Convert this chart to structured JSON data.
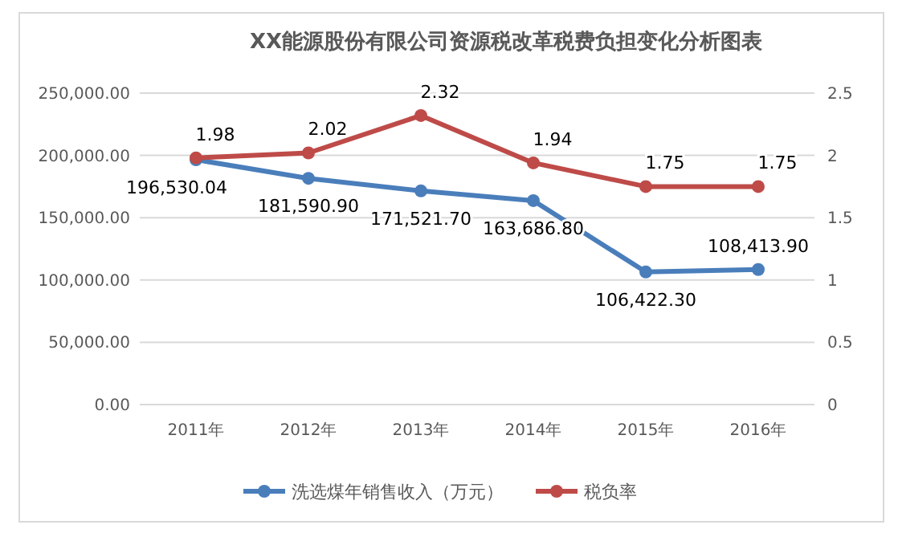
{
  "chart_data": {
    "type": "line",
    "title": "XX能源股份有限公司资源税改革税费负担变化分析图表",
    "categories": [
      "2011年",
      "2012年",
      "2013年",
      "2014年",
      "2015年",
      "2016年"
    ],
    "series": [
      {
        "name": "洗选煤年销售收入（万元）",
        "color": "#4a7ebb",
        "values": [
          196530.04,
          181590.9,
          171521.7,
          163686.8,
          106422.3,
          108413.9
        ],
        "value_labels": [
          "196,530.04",
          "181,590.90",
          "171,521.70",
          "163,686.80",
          "106,422.30",
          "108,413.90"
        ]
      },
      {
        "name": "税负率",
        "color": "#be4b48",
        "axis": "y2",
        "values": [
          1.98,
          2.02,
          2.32,
          1.94,
          1.75,
          1.75
        ],
        "value_labels": [
          "1.98",
          "2.02",
          "2.32",
          "1.94",
          "1.75",
          "1.75"
        ]
      }
    ],
    "ylim": [
      0,
      250000
    ],
    "yticks": [
      {
        "value": 0,
        "label": "0.00"
      },
      {
        "value": 50000,
        "label": "50,000.00"
      },
      {
        "value": 100000,
        "label": "100,000.00"
      },
      {
        "value": 150000,
        "label": "150,000.00"
      },
      {
        "value": 200000,
        "label": "200,000.00"
      },
      {
        "value": 250000,
        "label": "250,000.00"
      }
    ],
    "y2lim": [
      0,
      2.5
    ],
    "y2ticks": [
      0,
      0.5,
      1,
      1.5,
      2,
      2.5
    ],
    "grid": "y",
    "legend": "bottom",
    "marker": "circle",
    "line_style": "solid"
  }
}
